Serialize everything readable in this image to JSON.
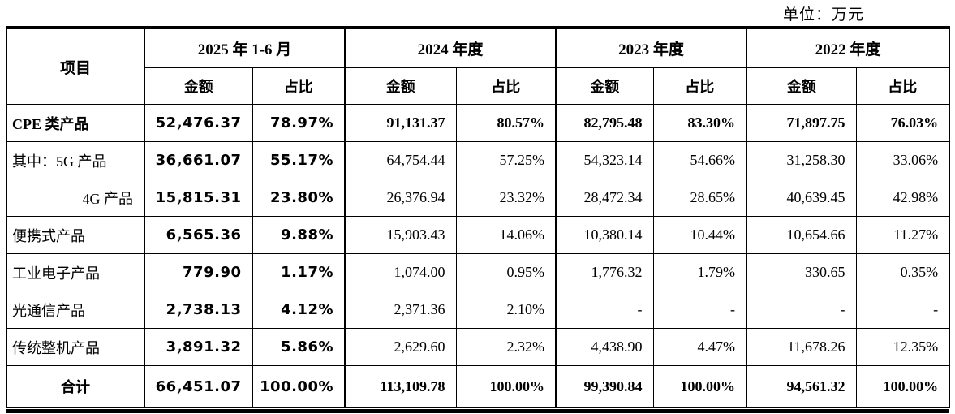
{
  "unit_label": "单位：万元",
  "table": {
    "item_header": "项目",
    "periods": [
      {
        "label": "2025 年 1-6 月"
      },
      {
        "label": "2024 年度"
      },
      {
        "label": "2023 年度"
      },
      {
        "label": "2022 年度"
      }
    ],
    "sub_headers": {
      "amount": "金额",
      "ratio": "占比"
    },
    "rows": [
      {
        "label": "CPE 类产品",
        "label_align": "left",
        "bold": true,
        "total": false,
        "cells": [
          "52,476.37",
          "78.97%",
          "91,131.37",
          "80.57%",
          "82,795.48",
          "83.30%",
          "71,897.75",
          "76.03%"
        ]
      },
      {
        "label": "其中：5G 产品",
        "label_align": "left",
        "bold": false,
        "total": false,
        "cells": [
          "36,661.07",
          "55.17%",
          "64,754.44",
          "57.25%",
          "54,323.14",
          "54.66%",
          "31,258.30",
          "33.06%"
        ]
      },
      {
        "label": "4G 产品",
        "label_align": "right",
        "bold": false,
        "total": false,
        "cells": [
          "15,815.31",
          "23.80%",
          "26,376.94",
          "23.32%",
          "28,472.34",
          "28.65%",
          "40,639.45",
          "42.98%"
        ]
      },
      {
        "label": "便携式产品",
        "label_align": "left",
        "bold": false,
        "total": false,
        "cells": [
          "6,565.36",
          "9.88%",
          "15,903.43",
          "14.06%",
          "10,380.14",
          "10.44%",
          "10,654.66",
          "11.27%"
        ]
      },
      {
        "label": "工业电子产品",
        "label_align": "left",
        "bold": false,
        "total": false,
        "cells": [
          "779.90",
          "1.17%",
          "1,074.00",
          "0.95%",
          "1,776.32",
          "1.79%",
          "330.65",
          "0.35%"
        ]
      },
      {
        "label": "光通信产品",
        "label_align": "left",
        "bold": false,
        "total": false,
        "cells": [
          "2,738.13",
          "4.12%",
          "2,371.36",
          "2.10%",
          "-",
          "-",
          "-",
          "-"
        ]
      },
      {
        "label": "传统整机产品",
        "label_align": "left",
        "bold": false,
        "total": false,
        "cells": [
          "3,891.32",
          "5.86%",
          "2,629.60",
          "2.32%",
          "4,438.90",
          "4.47%",
          "11,678.26",
          "12.35%"
        ]
      },
      {
        "label": "合计",
        "label_align": "center",
        "bold": true,
        "total": true,
        "cells": [
          "66,451.07",
          "100.00%",
          "113,109.78",
          "100.00%",
          "99,390.84",
          "100.00%",
          "94,561.32",
          "100.00%"
        ]
      }
    ]
  }
}
